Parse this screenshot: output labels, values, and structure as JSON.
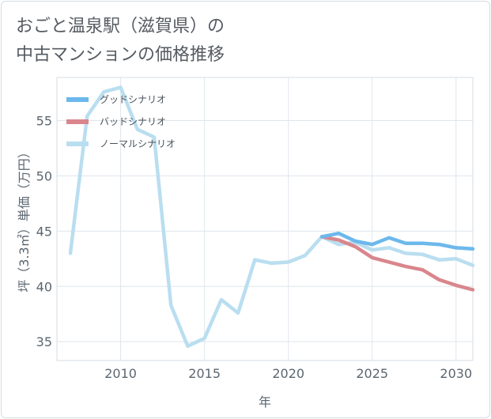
{
  "title": {
    "line1": "おごと温泉駅（滋賀県）の",
    "line2": "中古マンションの価格推移"
  },
  "chart_data": {
    "type": "line",
    "xlabel": "年",
    "ylabel": "坪（3.3㎡）単価（万円）",
    "xlim": [
      2006.2,
      2031
    ],
    "ylim": [
      33.3,
      58.9
    ],
    "xticks": [
      2010,
      2015,
      2020,
      2025,
      2030
    ],
    "yticks": [
      35,
      40,
      45,
      50,
      55
    ],
    "grid": true,
    "legend_position": "top-left",
    "series": [
      {
        "name": "グッドシナリオ",
        "color": "#6cb8ec",
        "x": [
          2022,
          2023,
          2024,
          2025,
          2026,
          2027,
          2028,
          2029,
          2030,
          2031
        ],
        "y": [
          44.5,
          44.8,
          44.1,
          43.8,
          44.4,
          43.9,
          43.9,
          43.8,
          43.5,
          43.4
        ]
      },
      {
        "name": "バッドシナリオ",
        "color": "#d9868c",
        "x": [
          2022,
          2023,
          2024,
          2025,
          2026,
          2027,
          2028,
          2029,
          2030,
          2031
        ],
        "y": [
          44.5,
          44.2,
          43.6,
          42.6,
          42.2,
          41.8,
          41.5,
          40.6,
          40.1,
          39.7
        ]
      },
      {
        "name": "ノーマルシナリオ",
        "color": "#b9def0",
        "x": [
          2007,
          2008,
          2009,
          2010,
          2011,
          2012,
          2013,
          2014,
          2015,
          2016,
          2017,
          2018,
          2019,
          2020,
          2021,
          2022,
          2023,
          2024,
          2025,
          2026,
          2027,
          2028,
          2029,
          2030,
          2031
        ],
        "y": [
          43.0,
          55.4,
          57.6,
          58.0,
          54.2,
          53.5,
          38.3,
          34.6,
          35.3,
          38.8,
          37.6,
          42.4,
          42.1,
          42.2,
          42.8,
          44.5,
          43.8,
          44.0,
          43.3,
          43.5,
          43.0,
          42.9,
          42.4,
          42.5,
          41.9
        ]
      }
    ]
  }
}
